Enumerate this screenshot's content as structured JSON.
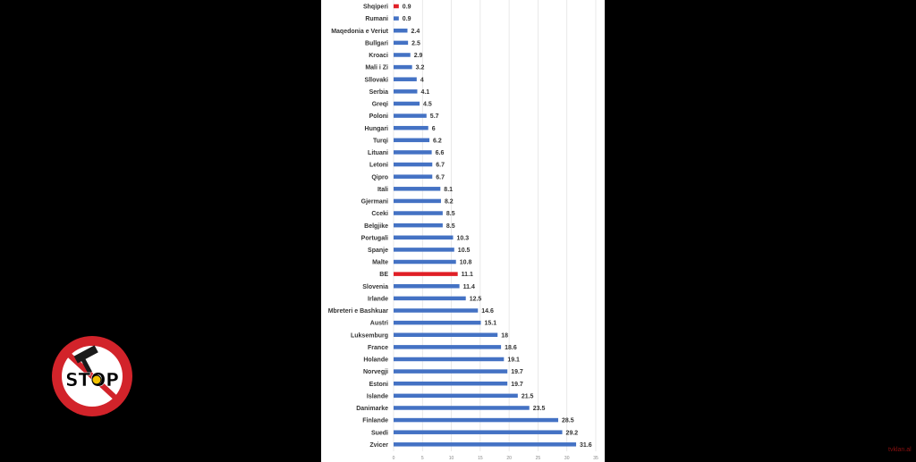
{
  "logo": {
    "text": "STOP",
    "colors": {
      "ring": "#d2232a",
      "center": "#ffffff",
      "text": "#000000",
      "accent": "#f2c200"
    }
  },
  "watermark": {
    "text": "tvklan.al"
  },
  "colors": {
    "bar": "#4472c4",
    "highlight": "#e01f26",
    "grid": "#e4e4e4",
    "label": "#333333"
  },
  "chart_data": {
    "type": "bar",
    "orientation": "horizontal",
    "categories": [
      "Shqiperi",
      "Rumani",
      "Maqedonia e Veriut",
      "Bullgari",
      "Kroaci",
      "Mali i Zi",
      "Sllovaki",
      "Serbia",
      "Greqi",
      "Poloni",
      "Hungari",
      "Turqi",
      "Lituani",
      "Letoni",
      "Qipro",
      "Itali",
      "Gjermani",
      "Cceki",
      "Belgjike",
      "Portugali",
      "Spanje",
      "Malte",
      "BE",
      "Slovenia",
      "Irlande",
      "Mbreteri e Bashkuar",
      "Austri",
      "Luksemburg",
      "France",
      "Holande",
      "Norvegji",
      "Estoni",
      "Islande",
      "Danimarke",
      "Finlande",
      "Suedi",
      "Zvicer"
    ],
    "values": [
      0.9,
      0.9,
      2.4,
      2.5,
      2.9,
      3.2,
      4,
      4.1,
      4.5,
      5.7,
      6,
      6.2,
      6.6,
      6.7,
      6.7,
      8.1,
      8.2,
      8.5,
      8.5,
      10.3,
      10.5,
      10.8,
      11.1,
      11.4,
      12.5,
      14.6,
      15.1,
      18,
      18.6,
      19.1,
      19.7,
      19.7,
      21.5,
      23.5,
      28.5,
      29.2,
      31.6
    ],
    "value_labels": [
      "0.9",
      "0.9",
      "2.4",
      "2.5",
      "2.9",
      "3.2",
      "4",
      "4.1",
      "4.5",
      "5.7",
      "6",
      "6.2",
      "6.6",
      "6.7",
      "6.7",
      "8.1",
      "8.2",
      "8.5",
      "8.5",
      "10.3",
      "10.5",
      "10.8",
      "11.1",
      "11.4",
      "12.5",
      "14.6",
      "15.1",
      "18",
      "18.6",
      "19.1",
      "19.7",
      "19.7",
      "21.5",
      "23.5",
      "28.5",
      "29.2",
      "31.6"
    ],
    "highlighted": [
      "Shqiperi",
      "BE"
    ],
    "xlim": [
      0,
      35
    ],
    "xticks": [
      "0",
      "5",
      "10",
      "15",
      "20",
      "25",
      "30",
      "35"
    ],
    "grid": "vertical",
    "legend": "none"
  }
}
